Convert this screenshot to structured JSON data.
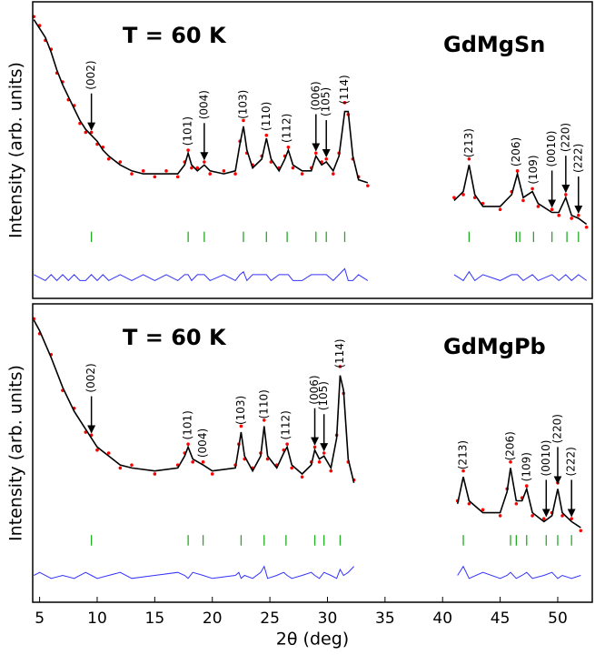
{
  "chart_data": [
    {
      "type": "line",
      "label": "GdMgSn",
      "annotation": "T = 60 K",
      "ylabel": "Intensity (arb. units)",
      "xlim": [
        4.4,
        53.0
      ],
      "ylim": [
        0,
        100
      ],
      "x": [
        4.5,
        5,
        5.5,
        6,
        6.5,
        7,
        7.5,
        8,
        8.5,
        9,
        9.5,
        10,
        10.5,
        11,
        12,
        13,
        14,
        15,
        16,
        17,
        17.6,
        17.9,
        18.2,
        18.7,
        19.3,
        19.8,
        21,
        22,
        22.4,
        22.7,
        23.0,
        23.5,
        24.3,
        24.7,
        25.1,
        25.8,
        26.3,
        26.6,
        27.0,
        27.8,
        28.6,
        29.0,
        29.5,
        29.9,
        30.5,
        31.0,
        31.5,
        31.8,
        32.2,
        32.7,
        33.5,
        null,
        41,
        41.8,
        42.3,
        42.8,
        43.5,
        45,
        46.0,
        46.5,
        47.0,
        47.8,
        48.3,
        49.5,
        50.1,
        50.7,
        51.2,
        51.8,
        52.5
      ],
      "series": [
        {
          "color": "#ff0000",
          "marker": true,
          "values": [
            95,
            92,
            87,
            84,
            76,
            73,
            67,
            65,
            59,
            56,
            56,
            52,
            51,
            47,
            46,
            42,
            43,
            41,
            43,
            41,
            46,
            50,
            44,
            44,
            46,
            42,
            43,
            42,
            53,
            60,
            49,
            45,
            48,
            55,
            46,
            44,
            48,
            51,
            44,
            42,
            44,
            49,
            46,
            47,
            42,
            49,
            66,
            62,
            47,
            41,
            38,
            null,
            34,
            35,
            47,
            34,
            32,
            30,
            36,
            43,
            33,
            37,
            31,
            30,
            28,
            35,
            27,
            28,
            24
          ]
        },
        {
          "color": "#000000",
          "marker": false,
          "values": [
            94,
            91,
            88,
            83,
            77,
            72,
            68,
            64,
            60,
            57,
            55,
            53,
            50,
            48,
            45,
            43,
            42,
            42,
            42,
            42,
            45,
            49,
            45,
            43,
            45,
            43,
            42,
            43,
            52,
            58,
            50,
            44,
            47,
            54,
            47,
            43,
            47,
            50,
            45,
            43,
            43,
            48,
            45,
            46,
            43,
            48,
            63,
            63,
            48,
            40,
            39,
            null,
            33,
            36,
            45,
            35,
            31,
            31,
            35,
            42,
            34,
            36,
            32,
            29,
            29,
            34,
            28,
            27,
            25
          ]
        },
        {
          "color": "#3333ff",
          "marker": false,
          "values": [
            8,
            7,
            6,
            8,
            6,
            8,
            6,
            8,
            6,
            6,
            8,
            6,
            8,
            6,
            8,
            6,
            8,
            6,
            8,
            6,
            8,
            8,
            6,
            8,
            8,
            6,
            8,
            6,
            8,
            9,
            6,
            8,
            8,
            8,
            6,
            8,
            8,
            8,
            6,
            6,
            8,
            8,
            8,
            8,
            6,
            8,
            10,
            6,
            6,
            8,
            6,
            null,
            8,
            6,
            9,
            6,
            8,
            6,
            8,
            8,
            6,
            8,
            6,
            8,
            6,
            8,
            6,
            8,
            6
          ]
        }
      ],
      "bragg_color": "#22aa22",
      "bragg_positions": [
        9.5,
        17.9,
        19.3,
        22.7,
        24.7,
        26.5,
        29.0,
        29.9,
        31.5,
        42.3,
        46.4,
        46.7,
        47.9,
        49.5,
        50.8,
        51.8
      ],
      "peak_labels": [
        {
          "text": "(002)",
          "x": 9.5,
          "arrow": true
        },
        {
          "text": "(101)",
          "x": 17.9,
          "arrow": false
        },
        {
          "text": "(004)",
          "x": 19.3,
          "arrow": true
        },
        {
          "text": "(103)",
          "x": 22.7,
          "arrow": false
        },
        {
          "text": "(110)",
          "x": 24.7,
          "arrow": false
        },
        {
          "text": "(112)",
          "x": 26.5,
          "arrow": false
        },
        {
          "text": "(006)",
          "x": 29.0,
          "arrow": true
        },
        {
          "text": "(105)",
          "x": 29.9,
          "arrow": true
        },
        {
          "text": "(114)",
          "x": 31.5,
          "arrow": false
        },
        {
          "text": "(213)",
          "x": 42.3,
          "arrow": false
        },
        {
          "text": "(206)",
          "x": 46.4,
          "arrow": false
        },
        {
          "text": "(109)",
          "x": 47.9,
          "arrow": false
        },
        {
          "text": "(0010)",
          "x": 49.5,
          "arrow": true
        },
        {
          "text": "(220)",
          "x": 50.7,
          "arrow": true
        },
        {
          "text": "(222)",
          "x": 51.8,
          "arrow": true
        }
      ]
    },
    {
      "type": "line",
      "label": "GdMgPb",
      "annotation": "T = 60 K",
      "ylabel": "Intensity (arb. units)",
      "xlabel": "2θ (deg)",
      "xlim": [
        4.4,
        53.0
      ],
      "ylim": [
        0,
        100
      ],
      "xticks": [
        5,
        10,
        15,
        20,
        25,
        30,
        35,
        40,
        45,
        50
      ],
      "x": [
        4.5,
        5,
        6,
        7,
        8,
        9,
        9.5,
        10,
        11,
        12,
        13,
        15,
        17,
        17.6,
        17.9,
        18.3,
        19.2,
        20,
        22,
        22.3,
        22.5,
        22.8,
        23.5,
        24.2,
        24.5,
        24.8,
        25.6,
        26.2,
        26.5,
        26.9,
        27.8,
        28.6,
        28.9,
        29.3,
        29.7,
        30.3,
        30.8,
        31.1,
        31.4,
        31.8,
        32.3,
        null,
        41.3,
        41.8,
        42.3,
        43.5,
        45.0,
        45.6,
        45.9,
        46.4,
        46.9,
        47.3,
        47.8,
        48.8,
        49.5,
        50.0,
        50.4,
        51.2,
        52.0
      ],
      "series": [
        {
          "color": "#ff0000",
          "marker": true,
          "values": [
            95,
            90,
            83,
            71,
            65,
            57,
            56,
            51,
            50,
            45,
            46,
            43,
            46,
            50,
            53,
            47,
            47,
            43,
            46,
            53,
            59,
            48,
            45,
            50,
            61,
            48,
            46,
            51,
            53,
            45,
            42,
            47,
            52,
            47,
            50,
            44,
            56,
            79,
            70,
            47,
            41,
            null,
            34,
            44,
            33,
            31,
            29,
            38,
            47,
            33,
            35,
            39,
            29,
            28,
            30,
            40,
            29,
            28,
            24
          ]
        },
        {
          "color": "#000000",
          "marker": false,
          "values": [
            94.5,
            91,
            82,
            72,
            64,
            58,
            55,
            52,
            49,
            46,
            45,
            44,
            45,
            49,
            52,
            48,
            46,
            44,
            45,
            52,
            57,
            49,
            44,
            49,
            59,
            49,
            45,
            50,
            52,
            46,
            43,
            46,
            51,
            48,
            49,
            45,
            55,
            76,
            71,
            48,
            40,
            null,
            33,
            42,
            34,
            30,
            30,
            37,
            45,
            34,
            34,
            38,
            30,
            27,
            29,
            38,
            30,
            27,
            25
          ]
        },
        {
          "color": "#3333ff",
          "marker": false,
          "values": [
            9,
            10,
            8,
            9,
            8,
            10,
            9,
            8,
            9,
            10,
            8,
            9,
            10,
            9,
            8,
            10,
            9,
            8,
            9,
            10,
            8,
            9,
            8,
            10,
            12,
            8,
            9,
            10,
            9,
            8,
            9,
            10,
            9,
            8,
            10,
            9,
            8,
            11,
            9,
            10,
            12,
            null,
            9,
            12,
            8,
            10,
            8,
            9,
            10,
            8,
            9,
            10,
            8,
            9,
            10,
            8,
            9,
            8,
            9
          ]
        }
      ],
      "bragg_color": "#22aa22",
      "bragg_positions": [
        9.5,
        17.9,
        19.2,
        22.5,
        24.5,
        26.4,
        28.9,
        29.7,
        31.1,
        41.8,
        45.9,
        46.4,
        47.3,
        49.0,
        50.0,
        51.2
      ],
      "peak_labels": [
        {
          "text": "(002)",
          "x": 9.5,
          "arrow": true
        },
        {
          "text": "(101)",
          "x": 17.9,
          "arrow": false
        },
        {
          "text": "(004)",
          "x": 19.2,
          "arrow": false
        },
        {
          "text": "(103)",
          "x": 22.5,
          "arrow": false
        },
        {
          "text": "(110)",
          "x": 24.5,
          "arrow": false
        },
        {
          "text": "(112)",
          "x": 26.4,
          "arrow": false
        },
        {
          "text": "(006)",
          "x": 28.9,
          "arrow": true
        },
        {
          "text": "(105)",
          "x": 29.7,
          "arrow": true
        },
        {
          "text": "(114)",
          "x": 31.1,
          "arrow": false
        },
        {
          "text": "(213)",
          "x": 41.8,
          "arrow": false
        },
        {
          "text": "(206)",
          "x": 45.9,
          "arrow": false
        },
        {
          "text": "(109)",
          "x": 47.3,
          "arrow": false
        },
        {
          "text": "(0010)",
          "x": 49.0,
          "arrow": true
        },
        {
          "text": "(220)",
          "x": 50.0,
          "arrow": true
        },
        {
          "text": "(222)",
          "x": 51.2,
          "arrow": true
        }
      ]
    }
  ]
}
